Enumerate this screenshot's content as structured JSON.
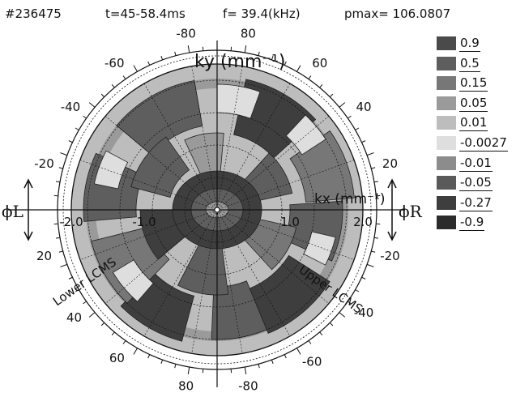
{
  "header": {
    "shot": "#236475",
    "time": "t=45-58.4ms",
    "freq": "f= 39.4(kHz)",
    "pmax": "pmax= 106.0807"
  },
  "chart_data": {
    "type": "heatmap",
    "projection": "polar",
    "title": "",
    "xlabel": "kx (mm⁻¹)",
    "ylabel": "ky (mm⁻¹)",
    "x_ticks": [
      "-2.0",
      "-1.0",
      "1.0",
      "2.0"
    ],
    "xlim": [
      -2.0,
      2.0
    ],
    "angle_ticks": [
      {
        "label": "-80",
        "deg": 100
      },
      {
        "label": "80",
        "deg": 80
      },
      {
        "label": "60",
        "deg": 55
      },
      {
        "label": "40",
        "deg": 35
      },
      {
        "label": "20",
        "deg": 15
      },
      {
        "label": "-20",
        "deg": -15
      },
      {
        "label": "-40",
        "deg": -35
      },
      {
        "label": "-60",
        "deg": -58
      },
      {
        "label": "-80",
        "deg": -80
      },
      {
        "label": "80",
        "deg": -100
      },
      {
        "label": "60",
        "deg": -124
      },
      {
        "label": "40",
        "deg": -143
      },
      {
        "label": "20",
        "deg": -165
      },
      {
        "label": "-20",
        "deg": 165
      },
      {
        "label": "-40",
        "deg": 145
      },
      {
        "label": "-60",
        "deg": 125
      }
    ],
    "annotations": {
      "left_dir": "ϕL",
      "right_dir": "ϕR",
      "lower_lcms": "Lower LCMS",
      "upper_lcms": "Upper LCMS"
    },
    "legend": [
      {
        "value": "0.9",
        "color": "#4a4a4a"
      },
      {
        "value": "0.5",
        "color": "#5e5e5e"
      },
      {
        "value": "0.15",
        "color": "#777777"
      },
      {
        "value": "0.05",
        "color": "#9a9a9a"
      },
      {
        "value": "0.01",
        "color": "#bdbdbd"
      },
      {
        "value": "-0.0027",
        "color": "#dedede"
      },
      {
        "value": "-0.01",
        "color": "#8c8c8c"
      },
      {
        "value": "-0.05",
        "color": "#5a5a5a"
      },
      {
        "value": "-0.27",
        "color": "#3e3e3e"
      },
      {
        "value": "-0.9",
        "color": "#2b2b2b"
      }
    ],
    "legend_placement": "right"
  }
}
